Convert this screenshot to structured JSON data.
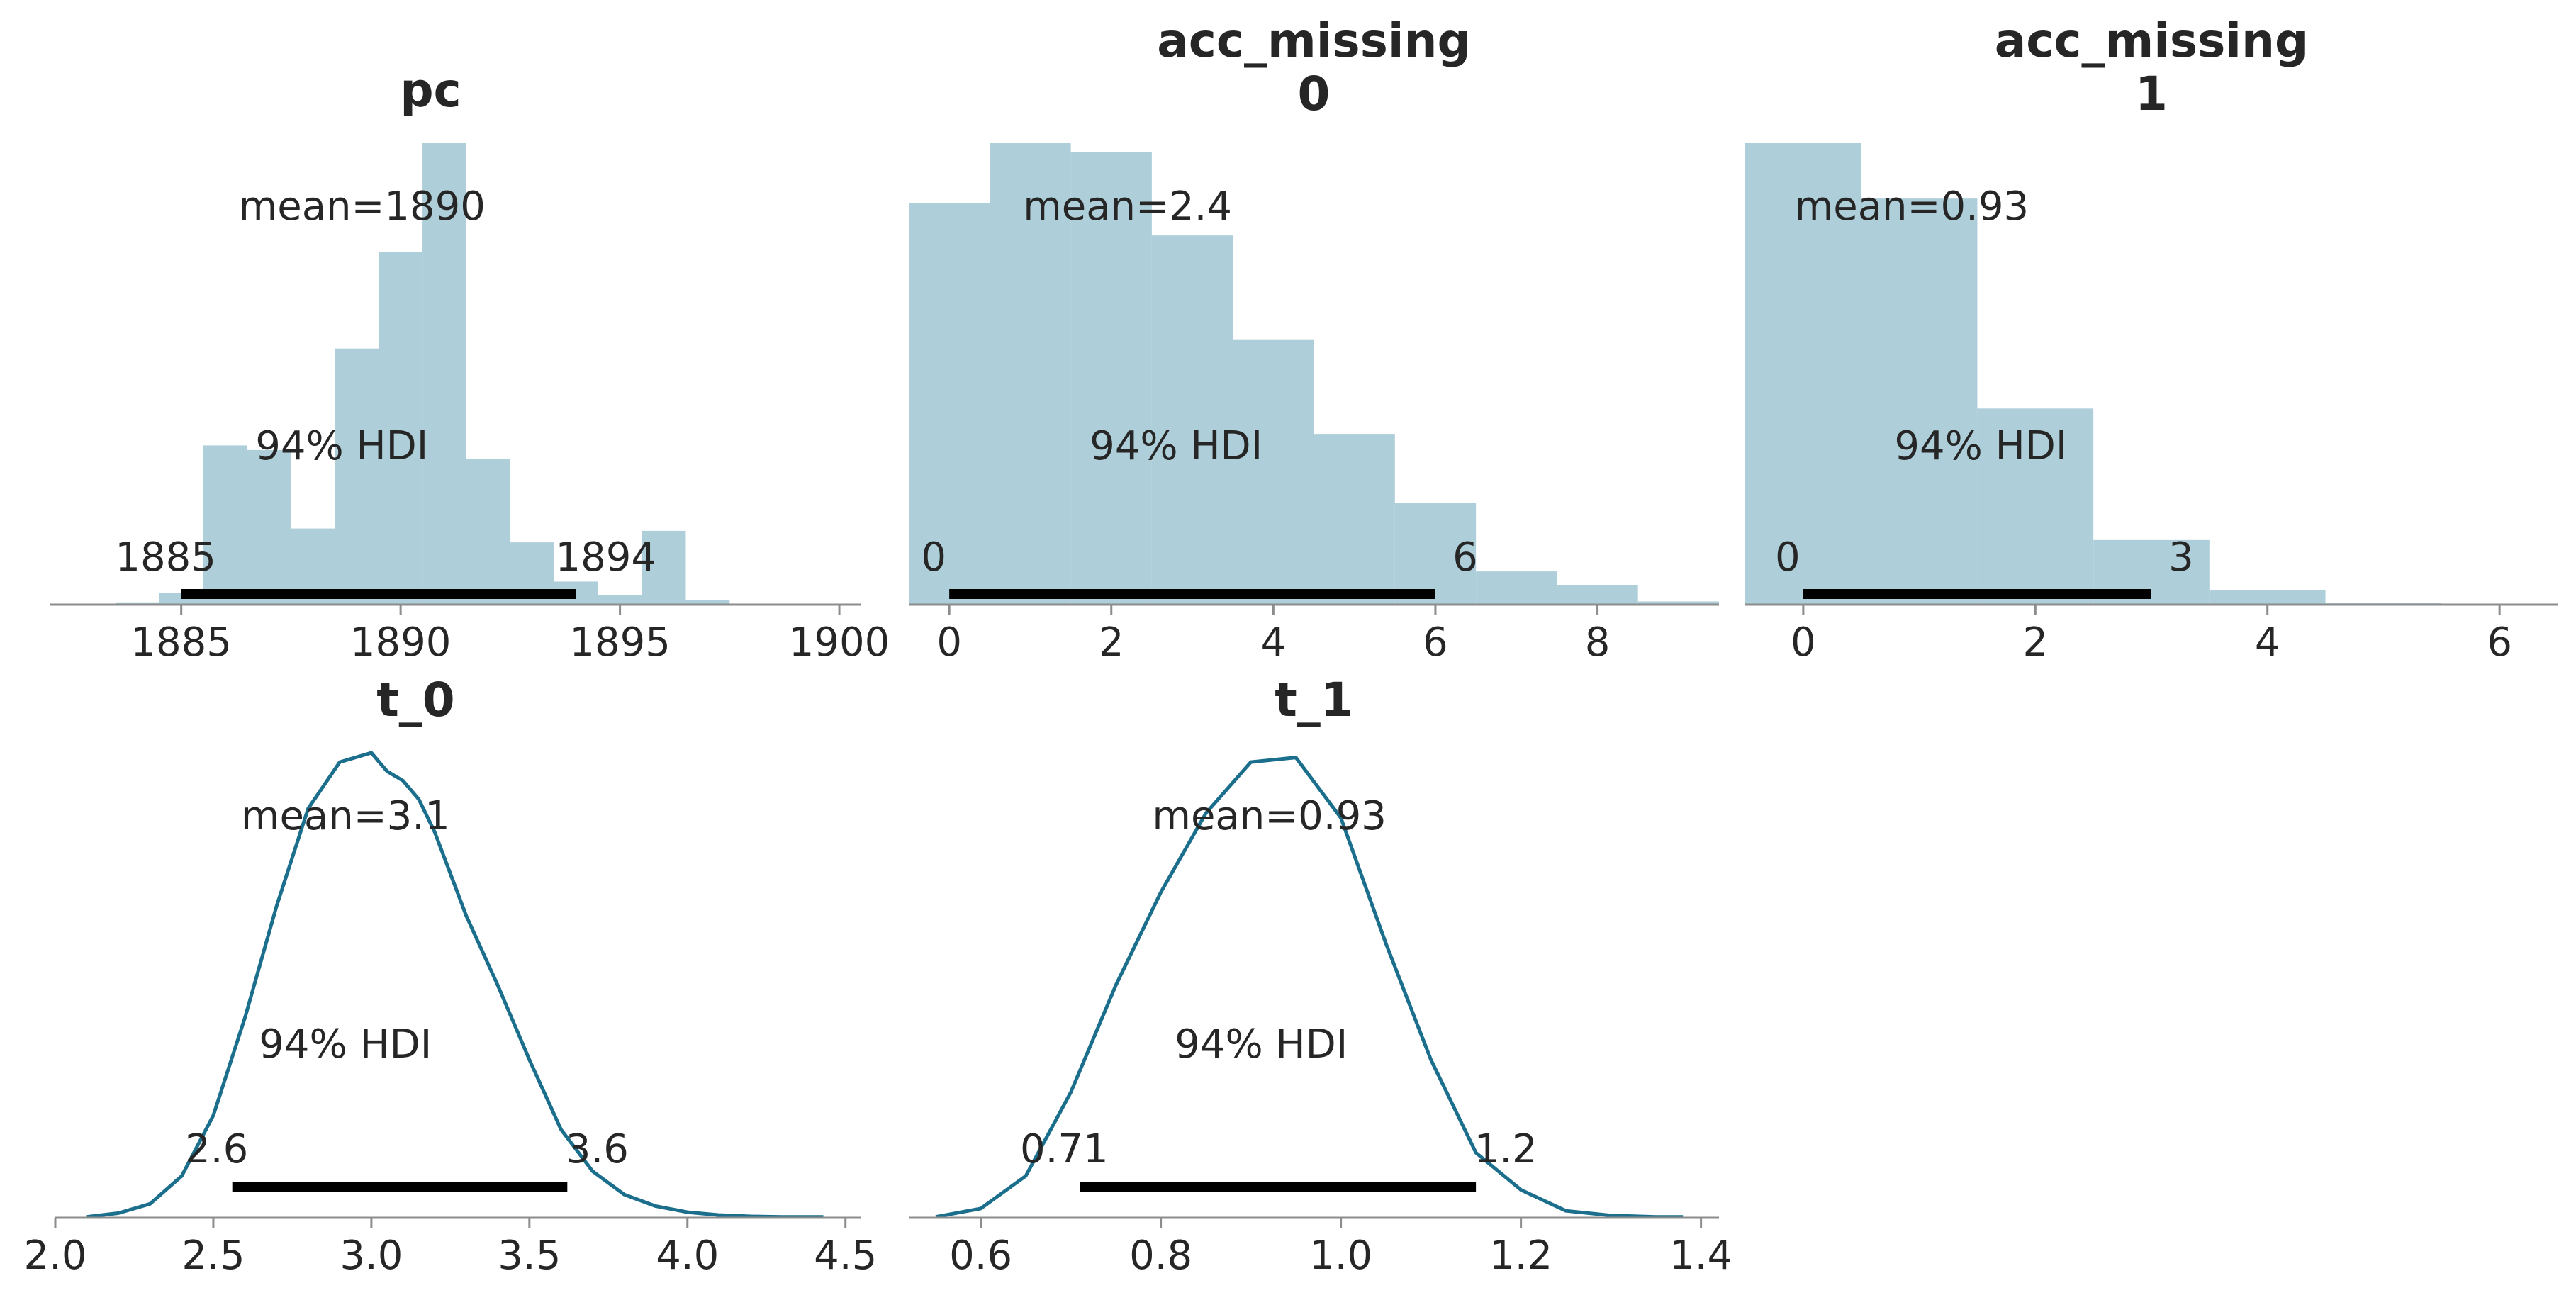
{
  "colors": {
    "hist": "#aecfd9",
    "kde": "#1b6f8c",
    "text": "#262626",
    "hdi": "#000000",
    "axis": "#8c8c8c"
  },
  "chart_data": [
    {
      "type": "bar",
      "title": "pc",
      "bins": [
        {
          "left": 1883.5,
          "right": 1884.5,
          "height": 0.005
        },
        {
          "left": 1884.5,
          "right": 1885.5,
          "height": 0.025
        },
        {
          "left": 1885.5,
          "right": 1886.5,
          "height": 0.345
        },
        {
          "left": 1886.5,
          "right": 1887.5,
          "height": 0.335
        },
        {
          "left": 1887.5,
          "right": 1888.5,
          "height": 0.165
        },
        {
          "left": 1888.5,
          "right": 1889.5,
          "height": 0.555
        },
        {
          "left": 1889.5,
          "right": 1890.5,
          "height": 0.765
        },
        {
          "left": 1890.5,
          "right": 1891.5,
          "height": 1.0
        },
        {
          "left": 1891.5,
          "right": 1892.5,
          "height": 0.315
        },
        {
          "left": 1892.5,
          "right": 1893.5,
          "height": 0.135
        },
        {
          "left": 1893.5,
          "right": 1894.5,
          "height": 0.05
        },
        {
          "left": 1894.5,
          "right": 1895.5,
          "height": 0.02
        },
        {
          "left": 1895.5,
          "right": 1896.5,
          "height": 0.16
        },
        {
          "left": 1896.5,
          "right": 1897.5,
          "height": 0.01
        }
      ],
      "xlim": [
        1882,
        1900.5
      ],
      "xticks": [
        1885,
        1890,
        1895,
        1900
      ],
      "mean_label": "mean=1890",
      "hdi_label": "94% HDI",
      "hdi": [
        1885,
        1894
      ],
      "hdi_low_label": "1885",
      "hdi_high_label": "1894"
    },
    {
      "type": "bar",
      "title": "acc_missing\n0",
      "bins": [
        {
          "left": -0.5,
          "right": 0.5,
          "height": 0.87
        },
        {
          "left": 0.5,
          "right": 1.5,
          "height": 1.0
        },
        {
          "left": 1.5,
          "right": 2.5,
          "height": 0.98
        },
        {
          "left": 2.5,
          "right": 3.5,
          "height": 0.8
        },
        {
          "left": 3.5,
          "right": 4.5,
          "height": 0.575
        },
        {
          "left": 4.5,
          "right": 5.5,
          "height": 0.37
        },
        {
          "left": 5.5,
          "right": 6.5,
          "height": 0.22
        },
        {
          "left": 6.5,
          "right": 7.5,
          "height": 0.072
        },
        {
          "left": 7.5,
          "right": 8.5,
          "height": 0.042
        },
        {
          "left": 8.5,
          "right": 9.5,
          "height": 0.007
        }
      ],
      "xlim": [
        -0.5,
        9.5
      ],
      "xticks": [
        0,
        2,
        4,
        6,
        8
      ],
      "mean_label": "mean=2.4",
      "hdi_label": "94% HDI",
      "hdi": [
        0,
        6
      ],
      "hdi_low_label": "0",
      "hdi_high_label": "6"
    },
    {
      "type": "bar",
      "title": "acc_missing\n1",
      "bins": [
        {
          "left": -0.5,
          "right": 0.5,
          "height": 1.0
        },
        {
          "left": 0.5,
          "right": 1.5,
          "height": 0.88
        },
        {
          "left": 1.5,
          "right": 2.5,
          "height": 0.425
        },
        {
          "left": 2.5,
          "right": 3.5,
          "height": 0.14
        },
        {
          "left": 3.5,
          "right": 4.5,
          "height": 0.032
        },
        {
          "left": 4.5,
          "right": 5.5,
          "height": 0.003
        }
      ],
      "xlim": [
        -0.5,
        6.5
      ],
      "xticks": [
        0,
        2,
        4,
        6
      ],
      "mean_label": "mean=0.93",
      "hdi_label": "94% HDI",
      "hdi": [
        0,
        3
      ],
      "hdi_low_label": "0",
      "hdi_high_label": "3"
    },
    {
      "type": "line",
      "title": "t_0",
      "x": [
        2.1,
        2.2,
        2.3,
        2.4,
        2.5,
        2.6,
        2.7,
        2.8,
        2.9,
        3.0,
        3.05,
        3.1,
        3.15,
        3.2,
        3.3,
        3.4,
        3.5,
        3.6,
        3.7,
        3.8,
        3.9,
        4.0,
        4.1,
        4.2,
        4.3,
        4.43
      ],
      "y": [
        0.002,
        0.01,
        0.03,
        0.09,
        0.22,
        0.43,
        0.67,
        0.88,
        0.98,
        1.0,
        0.96,
        0.94,
        0.9,
        0.83,
        0.65,
        0.5,
        0.34,
        0.19,
        0.1,
        0.05,
        0.025,
        0.012,
        0.006,
        0.003,
        0.002,
        0.002
      ],
      "xlim": [
        2.0,
        4.55
      ],
      "xticks": [
        "2.0",
        "2.5",
        "3.0",
        "3.5",
        "4.0",
        "4.5"
      ],
      "mean_label": "mean=3.1",
      "hdi_label": "94% HDI",
      "hdi": [
        2.56,
        3.62
      ],
      "hdi_low_label": "2.6",
      "hdi_high_label": "3.6"
    },
    {
      "type": "line",
      "title": "t_1",
      "x": [
        0.55,
        0.6,
        0.65,
        0.7,
        0.75,
        0.8,
        0.85,
        0.9,
        0.95,
        1.0,
        1.05,
        1.1,
        1.15,
        1.2,
        1.25,
        1.3,
        1.35,
        1.38
      ],
      "y": [
        0.002,
        0.02,
        0.09,
        0.27,
        0.5,
        0.7,
        0.87,
        0.98,
        0.99,
        0.86,
        0.59,
        0.34,
        0.14,
        0.06,
        0.015,
        0.005,
        0.002,
        0.002
      ],
      "xlim": [
        0.52,
        1.42
      ],
      "xticks": [
        "0.6",
        "0.8",
        "1.0",
        "1.2",
        "1.4"
      ],
      "mean_label": "mean=0.93",
      "hdi_label": "94% HDI",
      "hdi": [
        0.71,
        1.15
      ],
      "hdi_low_label": "0.71",
      "hdi_high_label": "1.2"
    }
  ]
}
